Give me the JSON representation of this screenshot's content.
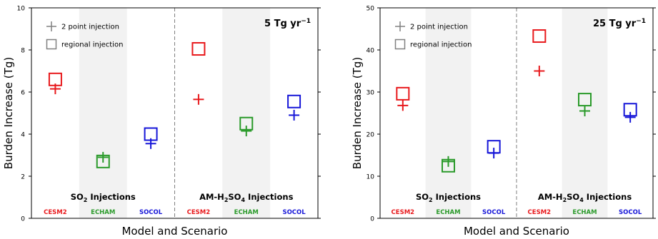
{
  "chart_data": [
    {
      "type": "scatter",
      "title": "",
      "rate_label": "5 Tg yr",
      "rate_sup": "−1",
      "xlabel": "Model and Scenario",
      "ylabel": "Burden Increase (Tg)",
      "ylim": [
        0,
        10
      ],
      "yticks": [
        "0",
        "2",
        "4",
        "6",
        "8",
        "10"
      ],
      "legend": {
        "placement": "top-left",
        "entries": [
          {
            "marker": "plus",
            "label": "2 point injection"
          },
          {
            "marker": "square",
            "label": "regional injection"
          }
        ]
      },
      "groups": [
        {
          "title_parts": [
            "SO",
            "2",
            " Injections"
          ],
          "models": [
            {
              "name": "CESM2",
              "color": "#e8191c",
              "two_point": 6.15,
              "regional": 6.6
            },
            {
              "name": "ECHAM",
              "color": "#2a9a2a",
              "two_point": 2.9,
              "regional": 2.7
            },
            {
              "name": "SOCOL",
              "color": "#1616d8",
              "two_point": 3.55,
              "regional": 4.0
            }
          ]
        },
        {
          "title_parts": [
            "AM-H",
            "2",
            "SO",
            "4",
            " Injections"
          ],
          "models": [
            {
              "name": "CESM2",
              "color": "#e8191c",
              "two_point": 5.65,
              "regional": 8.05
            },
            {
              "name": "ECHAM",
              "color": "#2a9a2a",
              "two_point": 4.15,
              "regional": 4.5
            },
            {
              "name": "SOCOL",
              "color": "#1616d8",
              "two_point": 4.9,
              "regional": 5.55
            }
          ]
        }
      ]
    },
    {
      "type": "scatter",
      "title": "",
      "rate_label": "25 Tg yr",
      "rate_sup": "−1",
      "xlabel": "Model and Scenario",
      "ylabel": "Burden Increase (Tg)",
      "ylim": [
        0,
        50
      ],
      "yticks": [
        "0",
        "10",
        "20",
        "30",
        "40",
        "50"
      ],
      "legend": {
        "placement": "top-left",
        "entries": [
          {
            "marker": "plus",
            "label": "2 point injection"
          },
          {
            "marker": "square",
            "label": "regional injection"
          }
        ]
      },
      "groups": [
        {
          "title_parts": [
            "SO",
            "2",
            " Injections"
          ],
          "models": [
            {
              "name": "CESM2",
              "color": "#e8191c",
              "two_point": 26.8,
              "regional": 29.6
            },
            {
              "name": "ECHAM",
              "color": "#2a9a2a",
              "two_point": 13.5,
              "regional": 12.5
            },
            {
              "name": "SOCOL",
              "color": "#1616d8",
              "two_point": 15.5,
              "regional": 17.0
            }
          ]
        },
        {
          "title_parts": [
            "AM-H",
            "2",
            "SO",
            "4",
            " Injections"
          ],
          "models": [
            {
              "name": "CESM2",
              "color": "#e8191c",
              "two_point": 35.0,
              "regional": 43.3
            },
            {
              "name": "ECHAM",
              "color": "#2a9a2a",
              "two_point": 25.5,
              "regional": 28.2
            },
            {
              "name": "SOCOL",
              "color": "#1616d8",
              "two_point": 24.0,
              "regional": 25.8
            }
          ]
        }
      ]
    }
  ]
}
